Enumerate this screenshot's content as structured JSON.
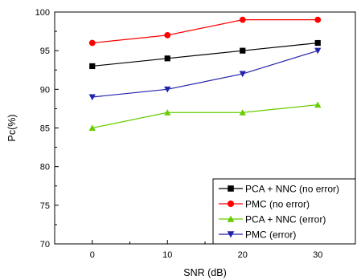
{
  "chart_data": {
    "type": "line",
    "title": "",
    "xlabel": "SNR (dB)",
    "ylabel": "Pc(%)",
    "x": [
      0,
      10,
      20,
      30
    ],
    "xticks": [
      "0",
      "10",
      "20",
      "30"
    ],
    "xlim": [
      -5,
      35
    ],
    "ylim": [
      70,
      100
    ],
    "yticks": [
      "70",
      "75",
      "80",
      "85",
      "90",
      "95",
      "100"
    ],
    "grid": false,
    "legend_position": "bottom-right",
    "series": [
      {
        "name": "PCA + NNC (no error)",
        "values": [
          93,
          94,
          95,
          96
        ],
        "color": "#000000",
        "marker": "square"
      },
      {
        "name": "PMC (no error)",
        "values": [
          96,
          97,
          99,
          99
        ],
        "color": "#ff0000",
        "marker": "circle"
      },
      {
        "name": "PCA + NNC (error)",
        "values": [
          85,
          87,
          87,
          88
        ],
        "color": "#66cc00",
        "marker": "triangle-up"
      },
      {
        "name": "PMC (error)",
        "values": [
          89,
          90,
          92,
          95
        ],
        "color": "#2222aa",
        "marker": "triangle-down"
      }
    ]
  }
}
